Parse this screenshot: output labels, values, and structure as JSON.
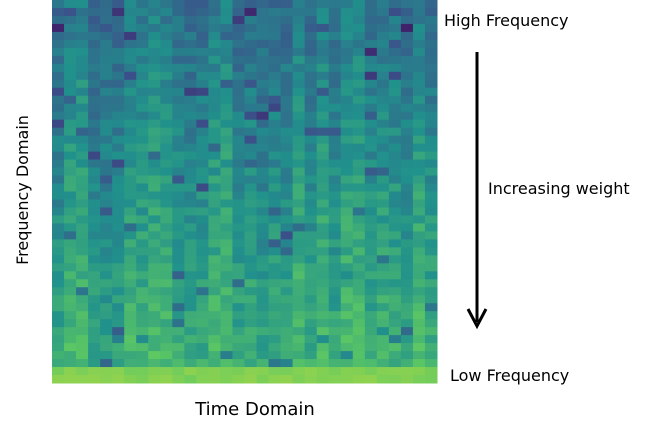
{
  "labels": {
    "high": "High Frequency",
    "weight": "Increasing weight",
    "low": "Low Frequency",
    "y_axis": "Frequency Domain",
    "x_axis": "Time Domain"
  }
}
